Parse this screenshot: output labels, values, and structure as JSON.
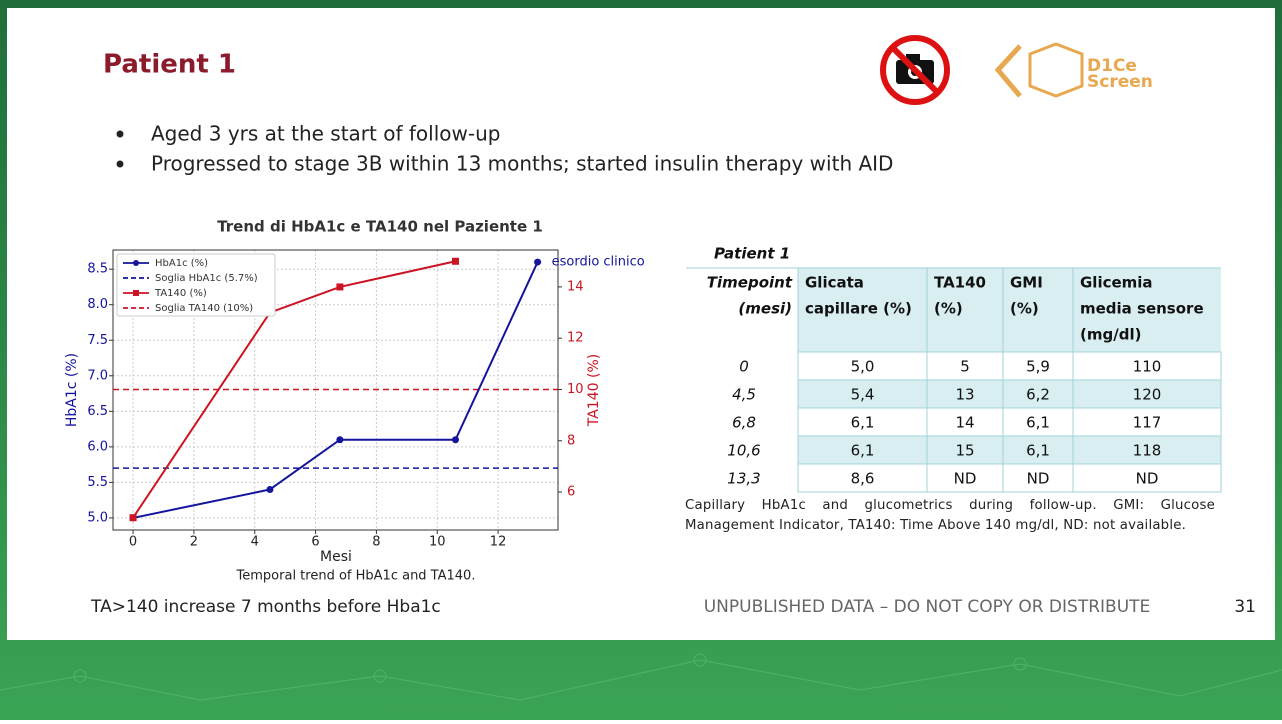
{
  "slide": {
    "title": "Patient 1",
    "bullets": [
      "Aged 3 yrs at the start of follow-up",
      "Progressed to stage 3B within 13 months; started insulin therapy with AID"
    ],
    "note": "TA>140 increase 7 months before Hba1c",
    "footer": "UNPUBLISHED DATA – DO NOT COPY OR DISTRIBUTE",
    "page_number": "31",
    "logo": [
      "D1Ce",
      "Screen"
    ]
  },
  "chart_data": {
    "type": "line",
    "title": "Trend di HbA1c e TA140 nel Paziente 1",
    "caption": "Temporal trend of HbA1c and TA140.",
    "x_label": "Mesi",
    "y_label": "HbA1c (%)",
    "y2_label": "TA140 (%)",
    "annotation": "esordio clinico",
    "series": [
      {
        "name": "HbA1c (%)",
        "color": "#14149c",
        "marker": "circle",
        "x": [
          0,
          4.5,
          6.8,
          10.6,
          13.3
        ],
        "values": [
          5.0,
          5.4,
          6.1,
          6.1,
          8.6
        ]
      },
      {
        "name": "TA140 (%)",
        "color": "#cc1424",
        "marker": "square",
        "axis": "y2",
        "x": [
          0,
          4.5,
          6.8,
          10.6
        ],
        "values": [
          5,
          13,
          14,
          15
        ]
      }
    ],
    "reference_lines": [
      {
        "name": "Soglia HbA1c (5.7%)",
        "value": 5.7,
        "color": "#14149c"
      },
      {
        "name": "Soglia TA140 (10%)",
        "value": 10,
        "color": "#cc1424",
        "axis": "y2"
      }
    ],
    "legend": "upper left",
    "grid": true,
    "xlim": [
      -0.66,
      13.97
    ],
    "xticks": [
      0,
      2,
      4,
      6,
      8,
      10,
      12
    ],
    "ylim": [
      4.83,
      8.77
    ],
    "yticks": [
      {
        "value": 5,
        "label": "5.0"
      },
      {
        "value": 5.5,
        "label": "5.5"
      },
      {
        "value": 6,
        "label": "6.0"
      },
      {
        "value": 6.5,
        "label": "6.5"
      },
      {
        "value": 7,
        "label": "7.0"
      },
      {
        "value": 7.5,
        "label": "7.5"
      },
      {
        "value": 8,
        "label": "8.0"
      },
      {
        "value": 8.5,
        "label": "8.5"
      }
    ],
    "y2lim": [
      4.52,
      15.44
    ],
    "y2ticks": [
      6,
      8,
      10,
      12,
      14
    ]
  },
  "table": {
    "title": "Patient 1",
    "headers": [
      [
        "Timepoint",
        "(mesi)"
      ],
      [
        "Glicata",
        "capillare (%)"
      ],
      [
        "TA140",
        "(%)"
      ],
      [
        "GMI",
        "(%)"
      ],
      [
        "Glicemia",
        "media sensore",
        "(mg/dl)"
      ]
    ],
    "rows": [
      [
        "0",
        "5,0",
        "5",
        "5,9",
        "110"
      ],
      [
        "4,5",
        "5,4",
        "13",
        "6,2",
        "120"
      ],
      [
        "6,8",
        "6,1",
        "14",
        "6,1",
        "117"
      ],
      [
        "10,6",
        "6,1",
        "15",
        "6,1",
        "118"
      ],
      [
        "13,3",
        "8,6",
        "ND",
        "ND",
        "ND"
      ]
    ],
    "caption": "Capillary HbA1c and glucometrics during follow-up. GMI: Glucose Management Indicator, TA140: Time Above 140 mg/dl, ND: not available."
  }
}
